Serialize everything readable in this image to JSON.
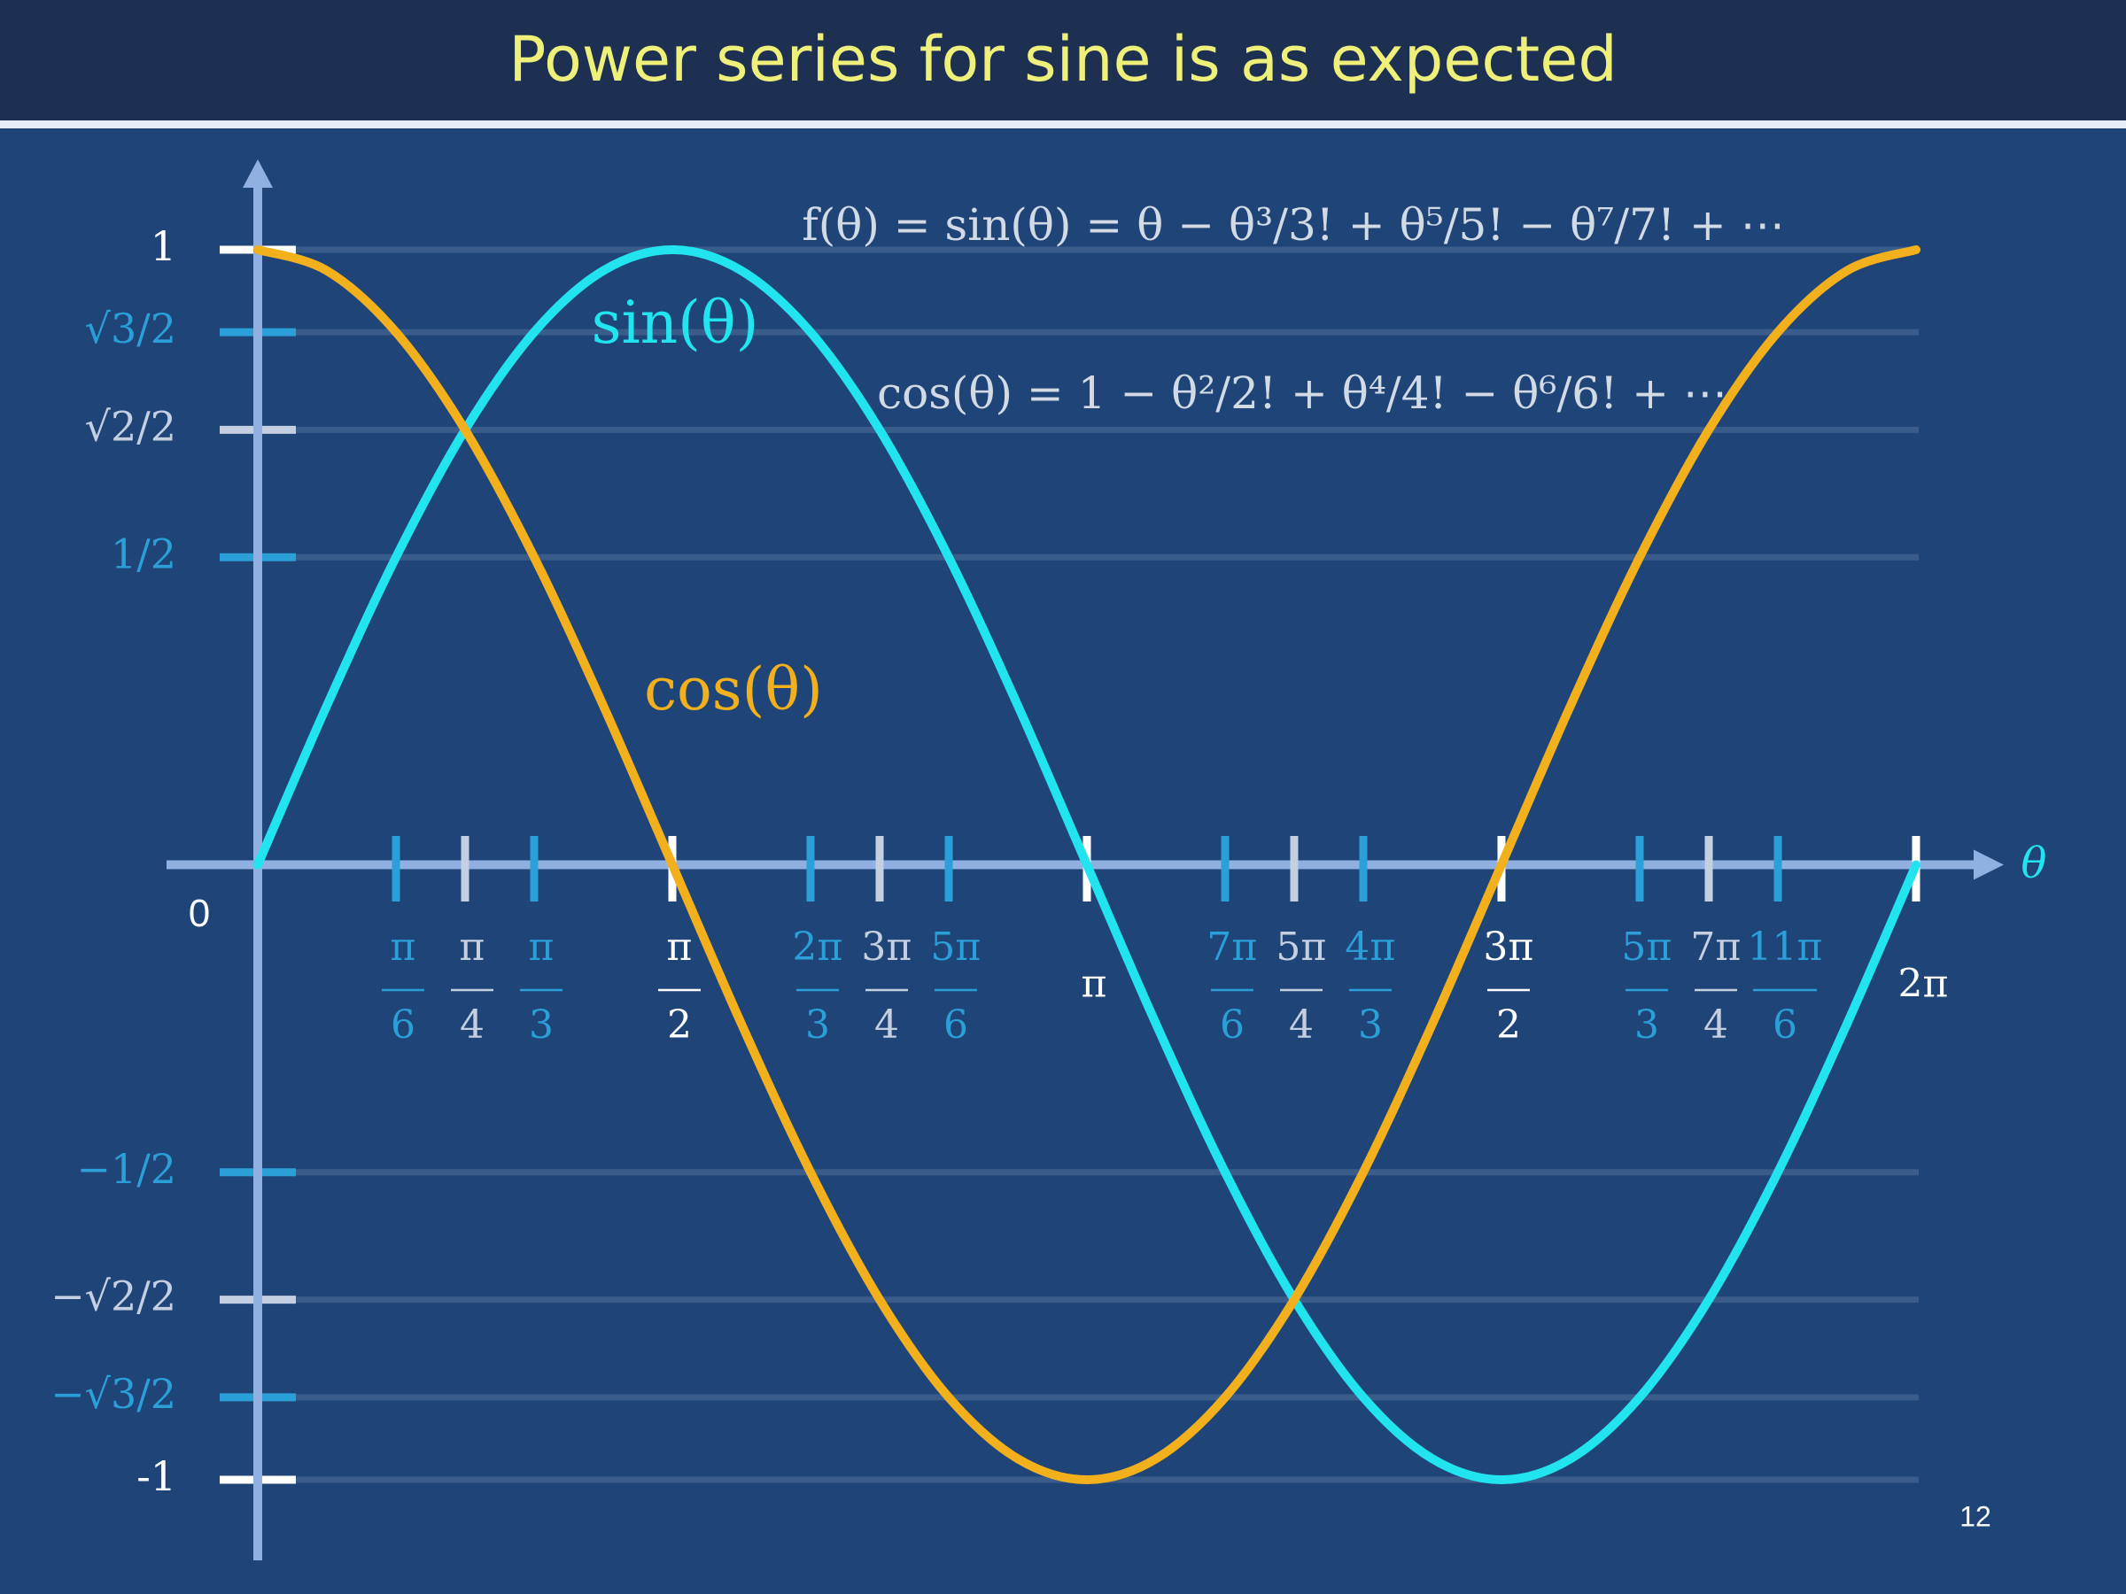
{
  "slide": {
    "title": "Power series for sine is as expected",
    "page_number": "12"
  },
  "chart_data": {
    "type": "line",
    "xlabel": "θ",
    "annotations": [
      "f(θ) = sin(θ) = θ − θ³/3! + θ⁵/5! − θ⁷/7! + ⋯",
      "cos(θ) = 1 − θ²/2! + θ⁴/4! − θ⁶/6! + ⋯"
    ],
    "x": [
      0,
      0.2618,
      0.5236,
      0.7854,
      1.0472,
      1.309,
      1.5708,
      1.8326,
      2.0944,
      2.3562,
      2.618,
      2.8798,
      3.1416,
      3.4034,
      3.6652,
      3.927,
      4.1888,
      4.4506,
      4.7124,
      4.9742,
      5.236,
      5.4978,
      5.7596,
      6.0214,
      6.2832
    ],
    "series": [
      {
        "name": "sin(θ)",
        "color": "#22e4ee",
        "values": [
          0,
          0.2588,
          0.5,
          0.7071,
          0.866,
          0.9659,
          1,
          0.9659,
          0.866,
          0.7071,
          0.5,
          0.2588,
          0,
          -0.2588,
          -0.5,
          -0.7071,
          -0.866,
          -0.9659,
          -1,
          -0.9659,
          -0.866,
          -0.7071,
          -0.5,
          -0.2588,
          0
        ]
      },
      {
        "name": "cos(θ)",
        "color": "#f2b01c",
        "values": [
          1,
          0.9659,
          0.866,
          0.7071,
          0.5,
          0.2588,
          0,
          -0.2588,
          -0.5,
          -0.7071,
          -0.866,
          -0.9659,
          -1,
          -0.9659,
          -0.866,
          -0.7071,
          -0.5,
          -0.2588,
          0,
          0.2588,
          0.5,
          0.7071,
          0.866,
          0.9659,
          1
        ]
      }
    ],
    "xlim": [
      0,
      6.2832
    ],
    "ylim": [
      -1,
      1
    ],
    "xticks": [
      {
        "value": 0.5236,
        "label": "π/6"
      },
      {
        "value": 0.7854,
        "label": "π/4"
      },
      {
        "value": 1.0472,
        "label": "π/3"
      },
      {
        "value": 1.5708,
        "label": "π/2"
      },
      {
        "value": 2.0944,
        "label": "2π/3"
      },
      {
        "value": 2.3562,
        "label": "3π/4"
      },
      {
        "value": 2.618,
        "label": "5π/6"
      },
      {
        "value": 3.1416,
        "label": "π"
      },
      {
        "value": 3.6652,
        "label": "7π/6"
      },
      {
        "value": 3.927,
        "label": "5π/4"
      },
      {
        "value": 4.1888,
        "label": "4π/3"
      },
      {
        "value": 4.7124,
        "label": "3π/2"
      },
      {
        "value": 5.236,
        "label": "5π/3"
      },
      {
        "value": 5.4978,
        "label": "7π/4"
      },
      {
        "value": 5.7596,
        "label": "11π/6"
      },
      {
        "value": 6.2832,
        "label": "2π"
      }
    ],
    "xtick_colors": [
      "#2a9fd8",
      "#c4d0e2",
      "#2a9fd8",
      "#ffffff",
      "#2a9fd8",
      "#c4d0e2",
      "#2a9fd8",
      "#ffffff",
      "#2a9fd8",
      "#c4d0e2",
      "#2a9fd8",
      "#ffffff",
      "#2a9fd8",
      "#c4d0e2",
      "#2a9fd8",
      "#ffffff"
    ],
    "yticks": [
      1,
      {
        "value": 0.866,
        "label": "√3/2"
      },
      {
        "value": 0.7071,
        "label": "√2/2"
      },
      {
        "value": 0.5,
        "label": "1/2"
      },
      0,
      {
        "value": -0.5,
        "label": "−1/2"
      },
      {
        "value": -0.7071,
        "label": "−√2/2"
      },
      {
        "value": -0.866,
        "label": "−√3/2"
      },
      -1
    ],
    "ytick_colors": [
      "#ffffff",
      "#2a9fd8",
      "#c4d0e2",
      "#2a9fd8",
      "#ffffff",
      "#2a9fd8",
      "#c4d0e2",
      "#2a9fd8",
      "#ffffff"
    ],
    "grid": true
  }
}
